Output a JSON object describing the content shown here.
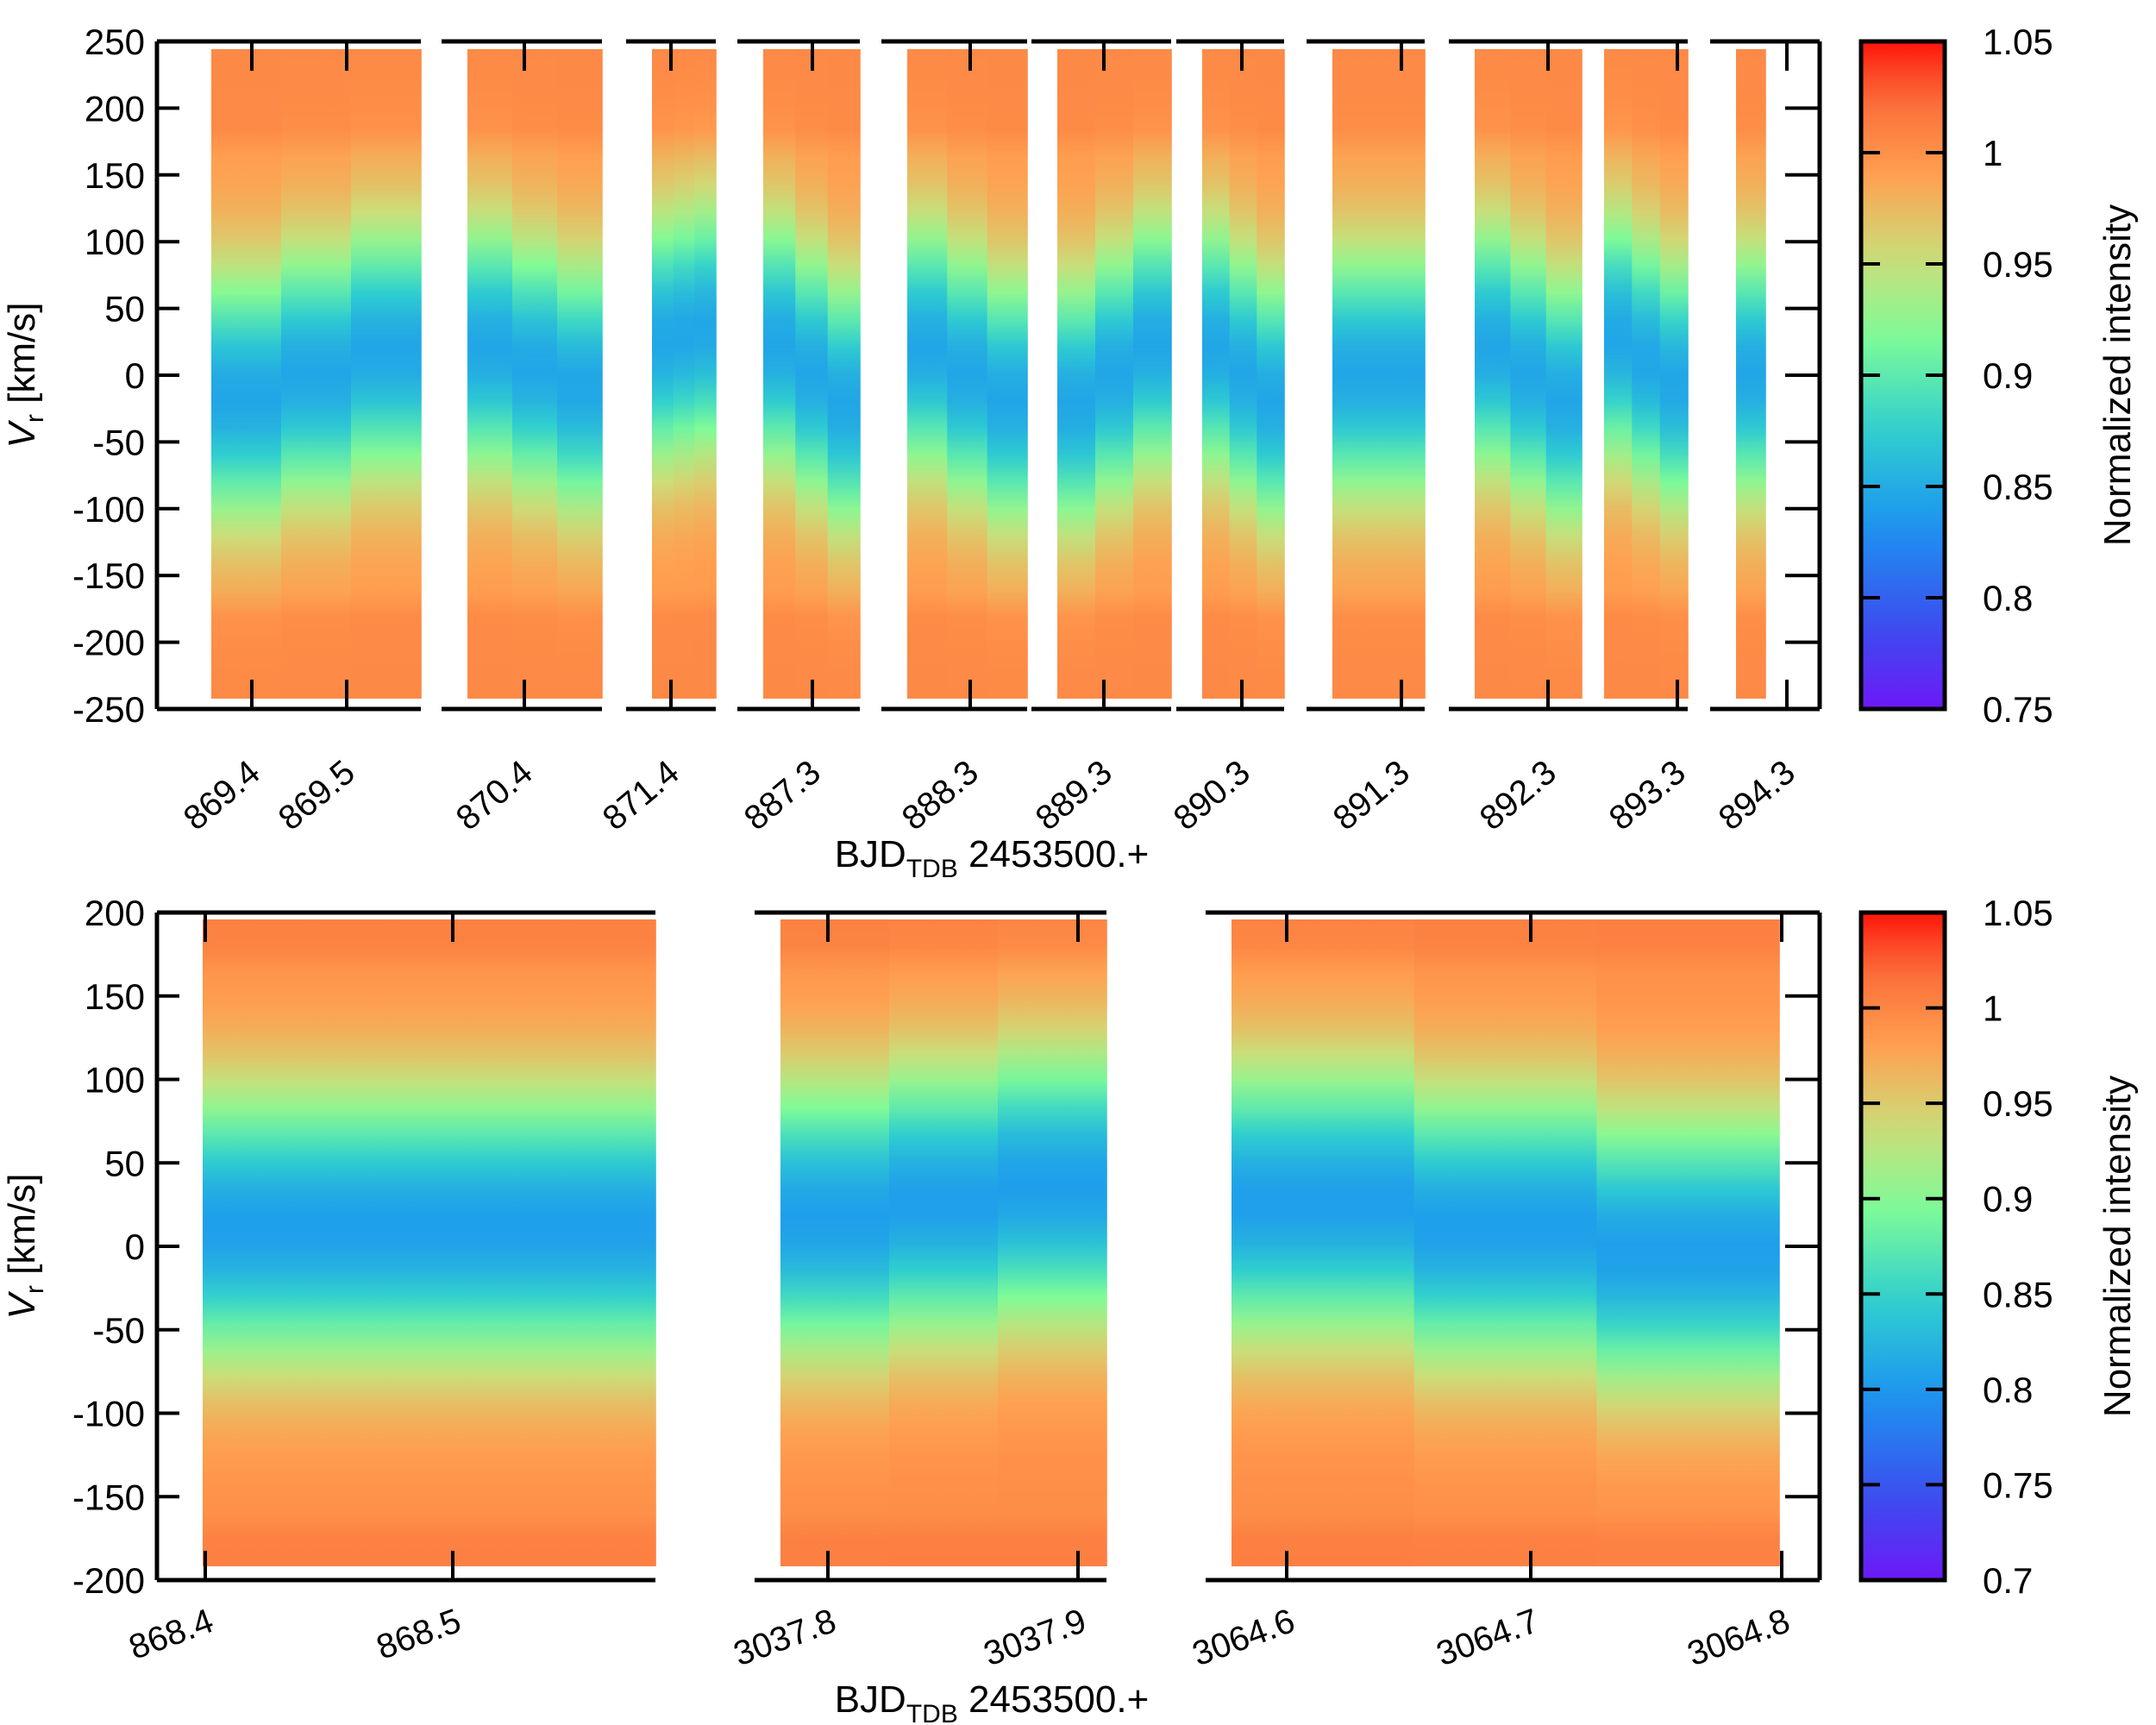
{
  "chart_data": [
    {
      "type": "heatmap",
      "title": "",
      "ylabel": "V_r [km/s]",
      "ylabel_main": "V",
      "ylabel_sub": "r",
      "ylabel_rest": " [km/s]",
      "xlabel": "BJD_TDB  2453500.+",
      "xlabel_main": "BJD",
      "xlabel_sub": "TDB",
      "xlabel_rest": "  2453500.+",
      "ylim": [
        -250,
        250
      ],
      "yticks": [
        250,
        200,
        150,
        100,
        50,
        0,
        -50,
        -100,
        -150,
        -200,
        -250
      ],
      "ytick_labels": [
        "250",
        "200",
        "150",
        "100",
        "50",
        "0",
        "-50",
        "-100",
        "-150",
        "-200",
        "-250"
      ],
      "colorbar": {
        "label": "Normalized intensity",
        "range": [
          0.75,
          1.05
        ],
        "ticks": [
          1.05,
          1,
          0.95,
          0.9,
          0.85,
          0.8,
          0.75
        ],
        "tick_labels": [
          "1.05",
          "1",
          "0.95",
          "0.9",
          "0.85",
          "0.8",
          "0.75"
        ]
      },
      "segments": [
        {
          "ticks": [
            {
              "label": "869.4"
            },
            {
              "label": "869.5"
            }
          ],
          "absorption_center": 0,
          "drift": 35
        },
        {
          "ticks": [
            {
              "label": "870.4"
            }
          ],
          "absorption_center": 5,
          "drift": -30
        },
        {
          "ticks": [
            {
              "label": "871.4"
            }
          ],
          "absorption_center": 30,
          "drift": 10
        },
        {
          "ticks": [
            {
              "label": "887.3"
            }
          ],
          "absorption_center": 0,
          "drift": -45
        },
        {
          "ticks": [
            {
              "label": "888.3"
            }
          ],
          "absorption_center": 0,
          "drift": -40
        },
        {
          "ticks": [
            {
              "label": "889.3"
            }
          ],
          "absorption_center": 0,
          "drift": 45
        },
        {
          "ticks": [
            {
              "label": "890.3"
            }
          ],
          "absorption_center": 0,
          "drift": -40
        },
        {
          "ticks": [
            {
              "label": "891.3"
            }
          ],
          "absorption_center": 0,
          "drift": 0
        },
        {
          "ticks": [
            {
              "label": "892.3"
            }
          ],
          "absorption_center": 0,
          "drift": -40
        },
        {
          "ticks": [
            {
              "label": "893.3"
            }
          ],
          "absorption_center": 10,
          "drift": -35
        },
        {
          "ticks": [
            {
              "label": "894.3"
            }
          ],
          "absorption_center": 0,
          "drift": 0
        }
      ]
    },
    {
      "type": "heatmap",
      "title": "",
      "ylabel": "V_r [km/s]",
      "ylabel_main": "V",
      "ylabel_sub": "r",
      "ylabel_rest": " [km/s]",
      "xlabel": "BJD_TDB  2453500.+",
      "xlabel_main": "BJD",
      "xlabel_sub": "TDB",
      "xlabel_rest": "  2453500.+",
      "ylim": [
        -200,
        200
      ],
      "yticks": [
        200,
        150,
        100,
        50,
        0,
        -50,
        -100,
        -150,
        -200
      ],
      "ytick_labels": [
        "200",
        "150",
        "100",
        "50",
        "0",
        "-50",
        "-100",
        "-150",
        "-200"
      ],
      "colorbar": {
        "label": "Normalized intensity",
        "range": [
          0.7,
          1.05
        ],
        "ticks": [
          1.05,
          1,
          0.95,
          0.9,
          0.85,
          0.8,
          0.75,
          0.7
        ],
        "tick_labels": [
          "1.05",
          "1",
          "0.95",
          "0.9",
          "0.85",
          "0.8",
          "0.75",
          "0.7"
        ]
      },
      "segments": [
        {
          "ticks": [
            {
              "label": "868.4"
            },
            {
              "label": "868.5"
            }
          ],
          "absorption_center": 10,
          "drift": 0
        },
        {
          "ticks": [
            {
              "label": "3037.8"
            },
            {
              "label": "3037.9"
            }
          ],
          "absorption_center": 25,
          "drift": 20
        },
        {
          "ticks": [
            {
              "label": "3064.6"
            },
            {
              "label": "3064.7"
            },
            {
              "label": "3064.8"
            }
          ],
          "absorption_center": 10,
          "drift": -30
        }
      ]
    }
  ]
}
